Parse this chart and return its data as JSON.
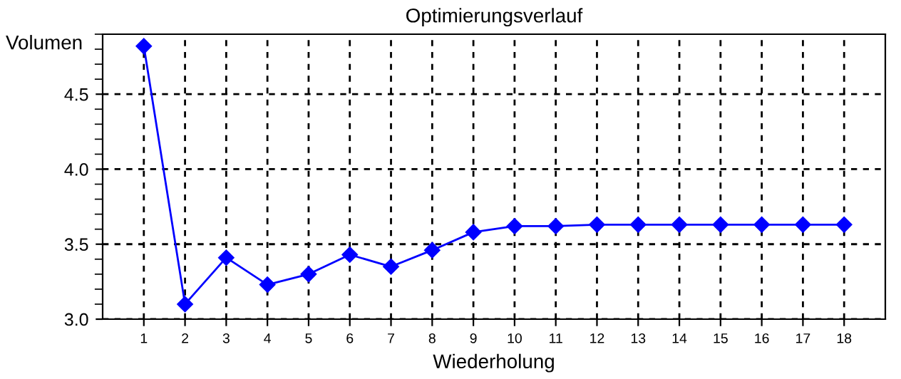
{
  "chart_data": {
    "type": "line",
    "title": "Optimierungsverlauf",
    "xlabel": "Wiederholung",
    "ylabel": "Volumen",
    "x": [
      1,
      2,
      3,
      4,
      5,
      6,
      7,
      8,
      9,
      10,
      11,
      12,
      13,
      14,
      15,
      16,
      17,
      18
    ],
    "series": [
      {
        "color": "#0000ff",
        "values": [
          4.82,
          3.1,
          3.41,
          3.23,
          3.3,
          3.43,
          3.35,
          3.46,
          3.58,
          3.62,
          3.62,
          3.63,
          3.63,
          3.63,
          3.63,
          3.63,
          3.63,
          3.63
        ]
      }
    ],
    "xlim": [
      0,
      19
    ],
    "xticks": [
      1,
      2,
      3,
      4,
      5,
      6,
      7,
      8,
      9,
      10,
      11,
      12,
      13,
      14,
      15,
      16,
      17,
      18
    ],
    "ylim": [
      3,
      4.9
    ],
    "yticks": [
      {
        "value": 3,
        "label": "3.0"
      },
      {
        "value": 3.5,
        "label": "3.5"
      },
      {
        "value": 4,
        "label": "4.0"
      },
      {
        "value": 4.5,
        "label": "4.5"
      }
    ],
    "grid": true,
    "marker": "diamond",
    "line_style": "solid",
    "legend": false
  }
}
